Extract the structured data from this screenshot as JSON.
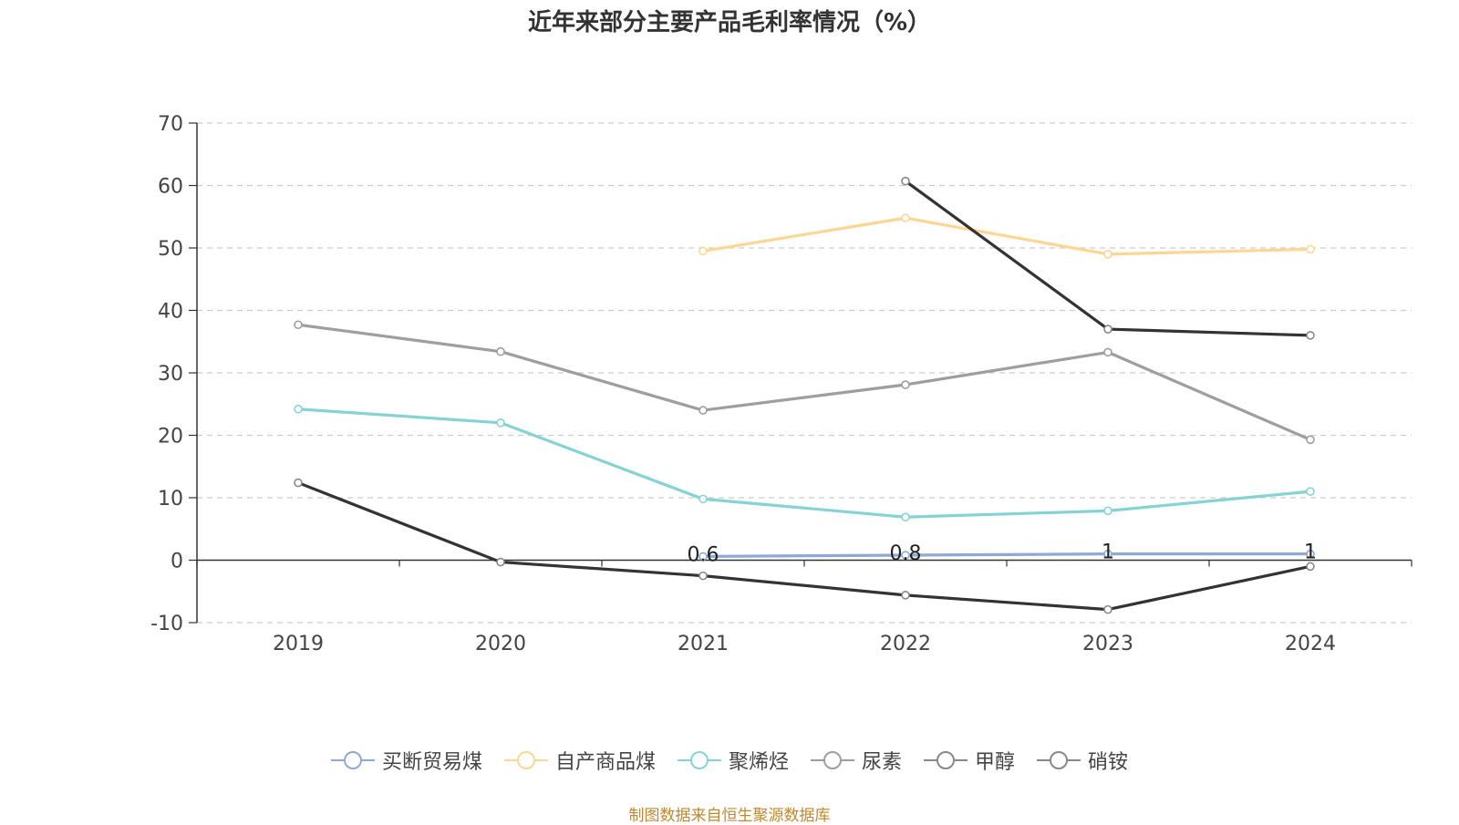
{
  "chart_data": {
    "type": "line",
    "title": "近年来部分主要产品毛利率情况（%）",
    "xlabel": "",
    "ylabel": "",
    "categories": [
      "2019",
      "2020",
      "2021",
      "2022",
      "2023",
      "2024"
    ],
    "ylim": [
      -10,
      70
    ],
    "yticks": [
      -10,
      0,
      10,
      20,
      30,
      40,
      50,
      60,
      70
    ],
    "grid": true,
    "legend_position": "bottom",
    "series": [
      {
        "name": "买断贸易煤",
        "color": "#8fa8d8",
        "values": [
          null,
          null,
          0.6,
          0.8,
          1,
          1
        ],
        "labels": [
          "",
          "",
          "0.6",
          "0.8",
          "1",
          "1"
        ]
      },
      {
        "name": "自产商品煤",
        "color": "#fdd694",
        "values": [
          null,
          null,
          49.5,
          54.8,
          49,
          49.8
        ],
        "labels": []
      },
      {
        "name": "聚烯烃",
        "color": "#86d3d3",
        "values": [
          24.2,
          22,
          9.8,
          6.9,
          7.9,
          11
        ],
        "labels": []
      },
      {
        "name": "尿素",
        "color": "#9e9e9e",
        "values": [
          37.7,
          33.4,
          24,
          28.1,
          33.3,
          19.3
        ],
        "labels": []
      },
      {
        "name": "甲醇",
        "color": "#333333",
        "values": [
          12.4,
          -0.3,
          -2.5,
          -5.6,
          -7.9,
          -1
        ],
        "labels": []
      },
      {
        "name": "硝铵",
        "color": "#333333",
        "values": [
          null,
          null,
          null,
          60.7,
          37,
          36
        ],
        "labels": []
      }
    ]
  },
  "source_note": "制图数据来自恒生聚源数据库"
}
